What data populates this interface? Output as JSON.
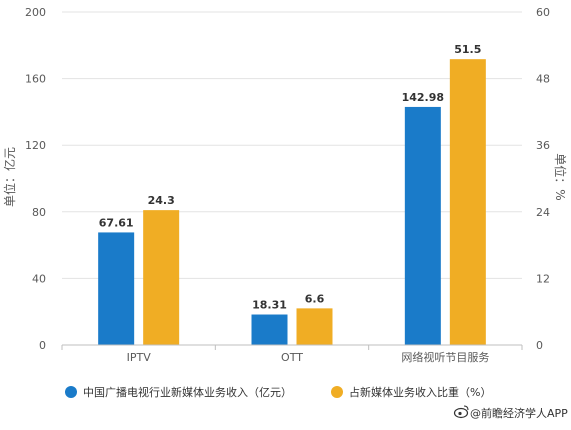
{
  "chart_data": {
    "type": "bar",
    "categories": [
      "IPTV",
      "OTT",
      "网络视听节目服务"
    ],
    "series": [
      {
        "name": "中国广播电视行业新媒体业务收入（亿元）",
        "values": [
          67.61,
          18.31,
          142.98
        ],
        "axis": "left",
        "color": "#1a7bc9"
      },
      {
        "name": "占新媒体业务收入比重（%）",
        "values": [
          24.3,
          6.6,
          51.5
        ],
        "axis": "right",
        "color": "#f0ad24"
      }
    ],
    "data_labels": [
      [
        "67.61",
        "18.31",
        "142.98"
      ],
      [
        "24.3",
        "6.6",
        "51.5"
      ]
    ],
    "ylabel": "单位：亿元",
    "y2label": "单位：%",
    "ylim": [
      0,
      200
    ],
    "y2lim": [
      0,
      60
    ],
    "yticks": [
      "0",
      "40",
      "80",
      "120",
      "160",
      "200"
    ],
    "y2ticks": [
      "0",
      "12",
      "24",
      "36",
      "48",
      "60"
    ],
    "grid": true,
    "legend_position": "bottom"
  },
  "credit": {
    "icon": "weibo-icon",
    "text": "@前瞻经济学人APP"
  }
}
